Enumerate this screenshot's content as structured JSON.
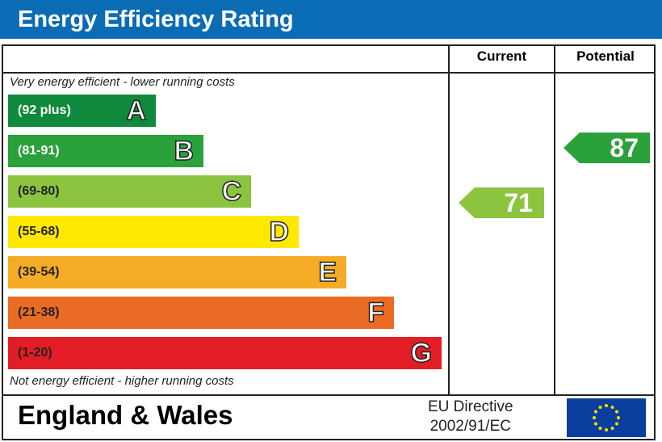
{
  "header": {
    "title": "Energy Efficiency Rating"
  },
  "columns": {
    "current": "Current",
    "potential": "Potential"
  },
  "notes": {
    "top": "Very energy efficient - lower running costs",
    "bottom": "Not energy efficient - higher running costs"
  },
  "footer": {
    "region": "England & Wales",
    "directive_line1": "EU Directive",
    "directive_line2": "2002/91/EC"
  },
  "chart_data": {
    "type": "bar",
    "title": "Energy Efficiency Rating",
    "bands": [
      {
        "letter": "A",
        "range": "(92 plus)",
        "color": "#0f8a3c"
      },
      {
        "letter": "B",
        "range": "(81-91)",
        "color": "#2aa13a"
      },
      {
        "letter": "C",
        "range": "(69-80)",
        "color": "#8cc43f"
      },
      {
        "letter": "D",
        "range": "(55-68)",
        "color": "#ffe800"
      },
      {
        "letter": "E",
        "range": "(39-54)",
        "color": "#f6ab26"
      },
      {
        "letter": "F",
        "range": "(21-38)",
        "color": "#ea6b24"
      },
      {
        "letter": "G",
        "range": "(1-20)",
        "color": "#e31d25"
      }
    ],
    "current": {
      "value": "71",
      "band": "C",
      "color": "#8cc43f"
    },
    "potential": {
      "value": "87",
      "band": "B",
      "color": "#2aa13a"
    }
  }
}
